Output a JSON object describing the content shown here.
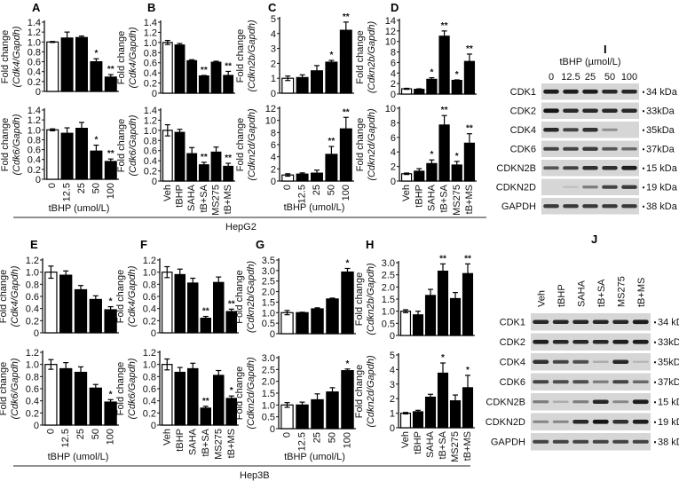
{
  "figure": {
    "cell_lines": [
      "HepG2",
      "Hep3B"
    ],
    "panel_letters": [
      "A",
      "B",
      "C",
      "D",
      "E",
      "F",
      "G",
      "H",
      "I",
      "J"
    ]
  },
  "chart_data": [
    {
      "id": "A-top",
      "panel": "A",
      "type": "bar",
      "categories": [
        "0",
        "12.5",
        "25",
        "50",
        "100"
      ],
      "values": [
        1.0,
        1.08,
        1.09,
        0.6,
        0.29
      ],
      "errors": [
        0.01,
        0.12,
        0.03,
        0.06,
        0.05
      ],
      "significance": [
        "",
        "",
        "",
        "*",
        "**"
      ],
      "ylabel": "Fold change",
      "ylabel_sub": "(Cdk4/Gapdh)",
      "yticks": [
        0,
        0.2,
        0.4,
        0.6,
        0.8,
        1.0,
        1.2,
        1.4
      ],
      "ylim": [
        0,
        1.4
      ],
      "xlabel": "",
      "control_first": true
    },
    {
      "id": "A-bottom",
      "panel": "A",
      "type": "bar",
      "categories": [
        "0",
        "12.5",
        "25",
        "50",
        "100"
      ],
      "values": [
        1.0,
        0.93,
        1.03,
        0.57,
        0.36
      ],
      "errors": [
        0.02,
        0.11,
        0.12,
        0.12,
        0.05
      ],
      "significance": [
        "",
        "",
        "",
        "*",
        "**"
      ],
      "ylabel": "Fold change",
      "ylabel_sub": "(Cdk6/Gapdh)",
      "yticks": [
        0,
        0.2,
        0.4,
        0.6,
        0.8,
        1.0,
        1.2,
        1.4
      ],
      "ylim": [
        0,
        1.4
      ],
      "xlabel": "tBHP (umol/L)",
      "control_first": true
    },
    {
      "id": "B-top",
      "panel": "B",
      "type": "bar",
      "categories": [
        "Veh",
        "tBHP",
        "SAHA",
        "tB+SA",
        "MS275",
        "tB+MS"
      ],
      "values": [
        1.0,
        0.95,
        0.64,
        0.34,
        0.61,
        0.35
      ],
      "errors": [
        0.04,
        0.03,
        0.02,
        0.01,
        0.02,
        0.08
      ],
      "significance": [
        "",
        "",
        "",
        "**",
        "",
        "**"
      ],
      "ylabel": "Fold change",
      "ylabel_sub": "(Cdk4/Gapdh)",
      "yticks": [
        0,
        0.2,
        0.4,
        0.6,
        0.8,
        1.0,
        1.2,
        1.4
      ],
      "ylim": [
        0,
        1.4
      ],
      "xlabel": "",
      "control_first": true
    },
    {
      "id": "B-bottom",
      "panel": "B",
      "type": "bar",
      "categories": [
        "Veh",
        "tBHP",
        "SAHA",
        "tB+SA",
        "MS275",
        "tB+MS"
      ],
      "values": [
        1.0,
        0.96,
        0.54,
        0.32,
        0.57,
        0.29
      ],
      "errors": [
        0.11,
        0.06,
        0.12,
        0.05,
        0.1,
        0.06
      ],
      "significance": [
        "",
        "",
        "",
        "**",
        "",
        "**"
      ],
      "ylabel": "Fold change",
      "ylabel_sub": "(Cdk6/Gapdh)",
      "yticks": [
        0,
        0.2,
        0.4,
        0.6,
        0.8,
        1.0,
        1.2,
        1.4
      ],
      "ylim": [
        0,
        1.4
      ],
      "xlabel": "",
      "control_first": true
    },
    {
      "id": "C-top",
      "panel": "C",
      "type": "bar",
      "categories": [
        "0",
        "12.5",
        "25",
        "50",
        "100"
      ],
      "values": [
        1.0,
        1.05,
        1.5,
        2.08,
        4.22
      ],
      "errors": [
        0.15,
        0.18,
        0.35,
        0.12,
        0.55
      ],
      "significance": [
        "",
        "",
        "",
        "*",
        "**"
      ],
      "ylabel": "Fold change",
      "ylabel_sub": "(Cdkn2b/Gapdh)",
      "yticks": [
        0,
        1,
        2,
        3,
        4,
        5
      ],
      "ylim": [
        0,
        5
      ],
      "xlabel": "",
      "control_first": true
    },
    {
      "id": "C-bottom",
      "panel": "C",
      "type": "bar",
      "categories": [
        "0",
        "12.5",
        "25",
        "50",
        "100"
      ],
      "values": [
        1.0,
        1.15,
        1.3,
        4.4,
        8.6
      ],
      "errors": [
        0.2,
        0.2,
        0.5,
        1.3,
        1.9
      ],
      "significance": [
        "",
        "",
        "",
        "**",
        "**"
      ],
      "ylabel": "Fold change",
      "ylabel_sub": "(Cdkn2d/Gapdh)",
      "yticks": [
        0,
        2,
        4,
        6,
        8,
        10,
        12
      ],
      "ylim": [
        0,
        12
      ],
      "xlabel": "tBHP (umol/L)",
      "control_first": true
    },
    {
      "id": "D-top",
      "panel": "D",
      "type": "bar",
      "categories": [
        "Veh",
        "tBHP",
        "SAHA",
        "tB+SA",
        "MS275",
        "tB+MS"
      ],
      "values": [
        1.0,
        0.9,
        2.8,
        11.0,
        2.6,
        6.2
      ],
      "errors": [
        0.1,
        0.1,
        0.3,
        1.0,
        0.1,
        1.4
      ],
      "significance": [
        "",
        "",
        "*",
        "**",
        "*",
        "**"
      ],
      "ylabel": "Fold change",
      "ylabel_sub": "(Cdkn2b/Gapdh)",
      "yticks": [
        0,
        2,
        4,
        6,
        8,
        10,
        12,
        14
      ],
      "ylim": [
        0,
        14
      ],
      "xlabel": "",
      "control_first": true
    },
    {
      "id": "D-bottom",
      "panel": "D",
      "type": "bar",
      "categories": [
        "Veh",
        "tBHP",
        "SAHA",
        "tB+SA",
        "MS275",
        "tB+MS"
      ],
      "values": [
        1.0,
        1.35,
        2.4,
        7.7,
        2.2,
        5.2
      ],
      "errors": [
        0.1,
        0.35,
        0.5,
        1.3,
        0.5,
        1.3
      ],
      "significance": [
        "",
        "",
        "*",
        "**",
        "*",
        "**"
      ],
      "ylabel": "Fold change",
      "ylabel_sub": "(Cdkn2d/Gapdh)",
      "yticks": [
        0,
        2,
        4,
        6,
        8,
        10
      ],
      "ylim": [
        0,
        10
      ],
      "xlabel": "",
      "control_first": true
    },
    {
      "id": "E-top",
      "panel": "E",
      "type": "bar",
      "categories": [
        "0",
        "12.5",
        "25",
        "50",
        "100"
      ],
      "values": [
        1.0,
        0.95,
        0.71,
        0.55,
        0.38
      ],
      "errors": [
        0.1,
        0.07,
        0.07,
        0.06,
        0.05
      ],
      "significance": [
        "",
        "",
        "",
        "",
        "*"
      ],
      "ylabel": "Fold change",
      "ylabel_sub": "(Cdk4/Gapdh)",
      "yticks": [
        0,
        0.2,
        0.4,
        0.6,
        0.8,
        1.0,
        1.2
      ],
      "ylim": [
        0,
        1.2
      ],
      "xlabel": "",
      "control_first": true
    },
    {
      "id": "E-bottom",
      "panel": "E",
      "type": "bar",
      "categories": [
        "0",
        "12.5",
        "25",
        "50",
        "100"
      ],
      "values": [
        1.0,
        0.93,
        0.87,
        0.61,
        0.38
      ],
      "errors": [
        0.08,
        0.1,
        0.09,
        0.06,
        0.04
      ],
      "significance": [
        "",
        "",
        "",
        "",
        "*"
      ],
      "ylabel": "Fold change",
      "ylabel_sub": "(Cdk6/Gapdh)",
      "yticks": [
        0,
        0.2,
        0.4,
        0.6,
        0.8,
        1.0,
        1.2
      ],
      "ylim": [
        0,
        1.2
      ],
      "xlabel": "tBHP (umol/L)",
      "control_first": true
    },
    {
      "id": "F-top",
      "panel": "F",
      "type": "bar",
      "categories": [
        "Veh",
        "tBHP",
        "SAHA",
        "tB+SA",
        "MS275",
        "tB+MS"
      ],
      "values": [
        1.0,
        0.96,
        0.82,
        0.24,
        0.83,
        0.35
      ],
      "errors": [
        0.09,
        0.09,
        0.08,
        0.03,
        0.09,
        0.04
      ],
      "significance": [
        "",
        "",
        "",
        "**",
        "",
        "**"
      ],
      "ylabel": "Fold change",
      "ylabel_sub": "(Cdk4/Gapdh)",
      "yticks": [
        0,
        0.2,
        0.4,
        0.6,
        0.8,
        1.0,
        1.2
      ],
      "ylim": [
        0,
        1.2
      ],
      "xlabel": "",
      "control_first": true
    },
    {
      "id": "F-bottom",
      "panel": "F",
      "type": "bar",
      "categories": [
        "Veh",
        "tBHP",
        "SAHA",
        "tB+SA",
        "MS275",
        "tB+MS"
      ],
      "values": [
        1.0,
        0.87,
        0.93,
        0.28,
        0.82,
        0.44
      ],
      "errors": [
        0.09,
        0.08,
        0.09,
        0.03,
        0.08,
        0.04
      ],
      "significance": [
        "",
        "",
        "",
        "**",
        "",
        "*"
      ],
      "ylabel": "Fold change",
      "ylabel_sub": "(Cdk6/Gapdh)",
      "yticks": [
        0,
        0.2,
        0.4,
        0.6,
        0.8,
        1.0,
        1.2
      ],
      "ylim": [
        0,
        1.2
      ],
      "xlabel": "",
      "control_first": true
    },
    {
      "id": "G-top",
      "panel": "G",
      "type": "bar",
      "categories": [
        "0",
        "12.5",
        "25",
        "50",
        "100"
      ],
      "values": [
        1.0,
        1.0,
        1.18,
        1.65,
        2.93
      ],
      "errors": [
        0.1,
        0.02,
        0.05,
        0.04,
        0.17
      ],
      "significance": [
        "",
        "",
        "",
        "",
        "*"
      ],
      "ylabel": "Fold change",
      "ylabel_sub": "(Cdkn2b/Gapdh)",
      "yticks": [
        0,
        0.5,
        1.0,
        1.5,
        2.0,
        2.5,
        3.0,
        3.5
      ],
      "ylim": [
        0,
        3.5
      ],
      "xlabel": "",
      "control_first": true
    },
    {
      "id": "G-bottom",
      "panel": "G",
      "type": "bar",
      "categories": [
        "0",
        "12.5",
        "25",
        "50",
        "100"
      ],
      "values": [
        1.0,
        1.0,
        1.22,
        1.55,
        2.45
      ],
      "errors": [
        0.1,
        0.12,
        0.25,
        0.18,
        0.07
      ],
      "significance": [
        "",
        "",
        "",
        "",
        "*"
      ],
      "ylabel": "Fold change",
      "ylabel_sub": "(Cdkn2d/Gapdh)",
      "yticks": [
        0,
        0.5,
        1.0,
        1.5,
        2.0,
        2.5,
        3.0
      ],
      "ylim": [
        0,
        3.0
      ],
      "xlabel": "tBHP (umol/L)",
      "control_first": true
    },
    {
      "id": "H-top",
      "panel": "H",
      "type": "bar",
      "categories": [
        "Veh",
        "tBHP",
        "SAHA",
        "tB+SA",
        "MS275",
        "tB+MS"
      ],
      "values": [
        1.0,
        0.85,
        1.65,
        2.65,
        1.52,
        2.55
      ],
      "errors": [
        0.06,
        0.15,
        0.25,
        0.3,
        0.25,
        0.4
      ],
      "significance": [
        "",
        "",
        "",
        "**",
        "",
        "**"
      ],
      "ylabel": "Fold change",
      "ylabel_sub": "(Cdkn2b/Gapdh)",
      "yticks": [
        0,
        0.5,
        1.0,
        1.5,
        2.0,
        2.5,
        3.0
      ],
      "ylim": [
        0,
        3.0
      ],
      "xlabel": "",
      "control_first": true
    },
    {
      "id": "H-bottom",
      "panel": "H",
      "type": "bar",
      "categories": [
        "Veh",
        "tBHP",
        "SAHA",
        "tB+SA",
        "MS275",
        "tB+MS"
      ],
      "values": [
        1.0,
        1.1,
        2.1,
        3.75,
        1.85,
        2.75
      ],
      "errors": [
        0.05,
        0.1,
        0.2,
        0.7,
        0.4,
        0.85
      ],
      "significance": [
        "",
        "",
        "",
        "*",
        "",
        "*"
      ],
      "ylabel": "Fold change",
      "ylabel_sub": "(Cdkn2d/Gapdh)",
      "yticks": [
        0,
        1,
        2,
        3,
        4,
        5
      ],
      "ylim": [
        0,
        5
      ],
      "xlabel": "",
      "control_first": true
    }
  ],
  "blots": [
    {
      "panel": "I",
      "header": "tBHP (µmol/L)",
      "lanes": [
        "0",
        "12.5",
        "25",
        "50",
        "100"
      ],
      "lanes_rotated": false,
      "rows": [
        {
          "protein": "CDK1",
          "size": "34 kDa",
          "intensity": [
            0.9,
            0.9,
            0.9,
            0.85,
            0.85
          ]
        },
        {
          "protein": "CDK2",
          "size": "33kDa",
          "intensity": [
            0.95,
            0.85,
            0.85,
            0.85,
            0.85
          ]
        },
        {
          "protein": "CDK4",
          "size": "35kDa",
          "intensity": [
            0.85,
            0.7,
            0.8,
            0.3,
            0.0
          ]
        },
        {
          "protein": "CDK6",
          "size": "37kDa",
          "intensity": [
            0.7,
            0.7,
            0.75,
            0.6,
            0.5
          ]
        },
        {
          "protein": "CDKN2B",
          "size": "15 kDa",
          "intensity": [
            0.6,
            0.7,
            0.8,
            0.8,
            0.9
          ]
        },
        {
          "protein": "CDKN2D",
          "size": "19 kDa",
          "intensity": [
            0.0,
            0.05,
            0.4,
            0.7,
            0.75
          ]
        },
        {
          "protein": "GAPDH",
          "size": "38 kDa",
          "intensity": [
            0.75,
            0.75,
            0.75,
            0.75,
            0.75
          ]
        }
      ]
    },
    {
      "panel": "J",
      "header": "",
      "lanes": [
        "Veh",
        "tBHP",
        "SAHA",
        "tB+SA",
        "MS275",
        "tB+MS"
      ],
      "lanes_rotated": true,
      "rows": [
        {
          "protein": "CDK1",
          "size": "34 kDa",
          "intensity": [
            0.85,
            0.85,
            0.85,
            0.85,
            0.85,
            0.9
          ]
        },
        {
          "protein": "CDK2",
          "size": "33kDa",
          "intensity": [
            0.9,
            0.85,
            0.85,
            0.85,
            0.9,
            0.9
          ]
        },
        {
          "protein": "CDK4",
          "size": "35kDa",
          "intensity": [
            0.8,
            0.7,
            0.65,
            0.15,
            0.85,
            0.1
          ]
        },
        {
          "protein": "CDK6",
          "size": "37kDa",
          "intensity": [
            0.7,
            0.65,
            0.65,
            0.4,
            0.7,
            0.5
          ]
        },
        {
          "protein": "CDKN2B",
          "size": "15 kDa",
          "intensity": [
            0.4,
            0.15,
            0.4,
            0.85,
            0.35,
            0.9
          ]
        },
        {
          "protein": "CDKN2D",
          "size": "19 kDa",
          "intensity": [
            0.35,
            0.35,
            0.85,
            0.95,
            0.8,
            0.9
          ]
        },
        {
          "protein": "GAPDH",
          "size": "38 kDa",
          "intensity": [
            0.7,
            0.7,
            0.7,
            0.7,
            0.7,
            0.7
          ]
        }
      ]
    }
  ]
}
